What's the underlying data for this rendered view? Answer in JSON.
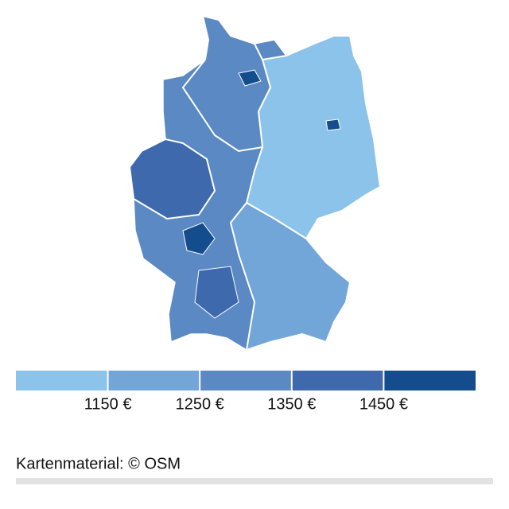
{
  "chart_data": {
    "type": "choropleth",
    "legend": {
      "colors": [
        "#8cc3ea",
        "#72a6d8",
        "#5a89c4",
        "#3e6aad",
        "#144d8d"
      ],
      "xlim": [
        1050,
        1550
      ],
      "xticks": [
        {
          "value": 1150,
          "label": "1150 €"
        },
        {
          "value": 1250,
          "label": "1250 €"
        },
        {
          "value": 1350,
          "label": "1350 €"
        },
        {
          "value": 1450,
          "label": "1450 €"
        }
      ]
    }
  },
  "source": "Kartenmaterial: © OSM"
}
